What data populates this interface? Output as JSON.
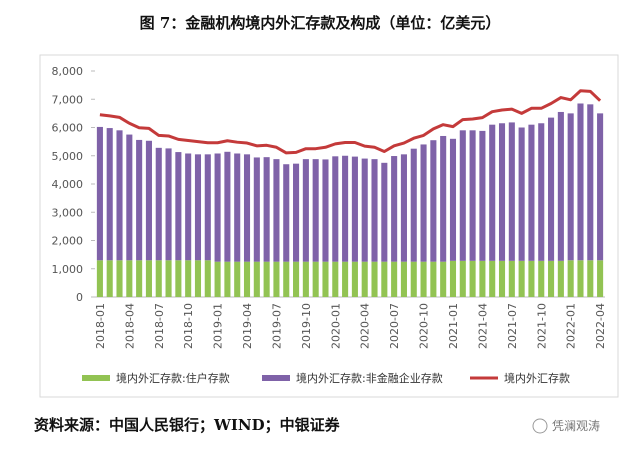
{
  "chart_data": {
    "type": "bar",
    "title": "图 7：金融机构境内外汇存款及构成（单位：亿美元）",
    "source": "资料来源：中国人民银行；WIND；中银证券",
    "watermark": "凭澜观涛",
    "categories": [
      "2018-01",
      null,
      null,
      "2018-04",
      null,
      null,
      "2018-07",
      null,
      null,
      "2018-10",
      null,
      null,
      "2019-01",
      null,
      null,
      "2019-04",
      null,
      null,
      "2019-07",
      null,
      null,
      "2019-10",
      null,
      null,
      "2020-01",
      null,
      null,
      "2020-04",
      null,
      null,
      "2020-07",
      null,
      null,
      "2020-10",
      null,
      null,
      "2021-01",
      null,
      null,
      "2021-04",
      null,
      null,
      "2021-07",
      null,
      null,
      "2021-10",
      null,
      null,
      "2022-01",
      null,
      null,
      "2022-04"
    ],
    "ylim": [
      0,
      8000
    ],
    "yticks": [
      0,
      {
        "value": 1000,
        "label": "1,000"
      },
      {
        "value": 2000,
        "label": "2,000"
      },
      {
        "value": 3000,
        "label": "3,000"
      },
      {
        "value": 4000,
        "label": "4,000"
      },
      {
        "value": 5000,
        "label": "5,000"
      },
      {
        "value": 6000,
        "label": "6,000"
      },
      {
        "value": 7000,
        "label": "7,000"
      },
      {
        "value": 8000,
        "label": "8,000"
      }
    ],
    "series": [
      {
        "name": "境内外汇存款:住户存款",
        "type": "bar",
        "color": "#92c353",
        "values": [
          1300,
          1300,
          1300,
          1300,
          1300,
          1300,
          1300,
          1300,
          1300,
          1300,
          1300,
          1300,
          1250,
          1250,
          1250,
          1250,
          1250,
          1250,
          1250,
          1250,
          1250,
          1250,
          1250,
          1250,
          1250,
          1250,
          1250,
          1250,
          1250,
          1250,
          1250,
          1250,
          1250,
          1250,
          1250,
          1250,
          1280,
          1280,
          1280,
          1280,
          1280,
          1280,
          1280,
          1280,
          1280,
          1280,
          1280,
          1280,
          1300,
          1300,
          1300,
          1300
        ]
      },
      {
        "name": "境内外汇存款:非金融企业存款",
        "type": "bar",
        "color": "#7f62a8",
        "values": [
          4720,
          4680,
          4600,
          4450,
          4260,
          4230,
          3980,
          3960,
          3830,
          3780,
          3750,
          3750,
          3830,
          3890,
          3830,
          3800,
          3690,
          3700,
          3630,
          3450,
          3470,
          3630,
          3630,
          3620,
          3730,
          3750,
          3720,
          3650,
          3630,
          3500,
          3740,
          3800,
          4000,
          4150,
          4300,
          4450,
          4320,
          4620,
          4620,
          4600,
          4820,
          4870,
          4900,
          4720,
          4820,
          4870,
          5070,
          5270,
          5200,
          5550,
          5520,
          5200
        ]
      },
      {
        "name": "境内外汇存款",
        "type": "line",
        "color": "#c43a3a",
        "values": [
          6450,
          6410,
          6360,
          6150,
          5990,
          5970,
          5720,
          5700,
          5580,
          5540,
          5500,
          5460,
          5460,
          5530,
          5480,
          5450,
          5350,
          5370,
          5300,
          5100,
          5120,
          5250,
          5250,
          5300,
          5420,
          5470,
          5470,
          5340,
          5300,
          5150,
          5350,
          5450,
          5620,
          5720,
          5950,
          6100,
          6030,
          6280,
          6300,
          6350,
          6560,
          6620,
          6650,
          6500,
          6680,
          6680,
          6850,
          7060,
          6980,
          7300,
          7280,
          6950
        ]
      }
    ]
  }
}
